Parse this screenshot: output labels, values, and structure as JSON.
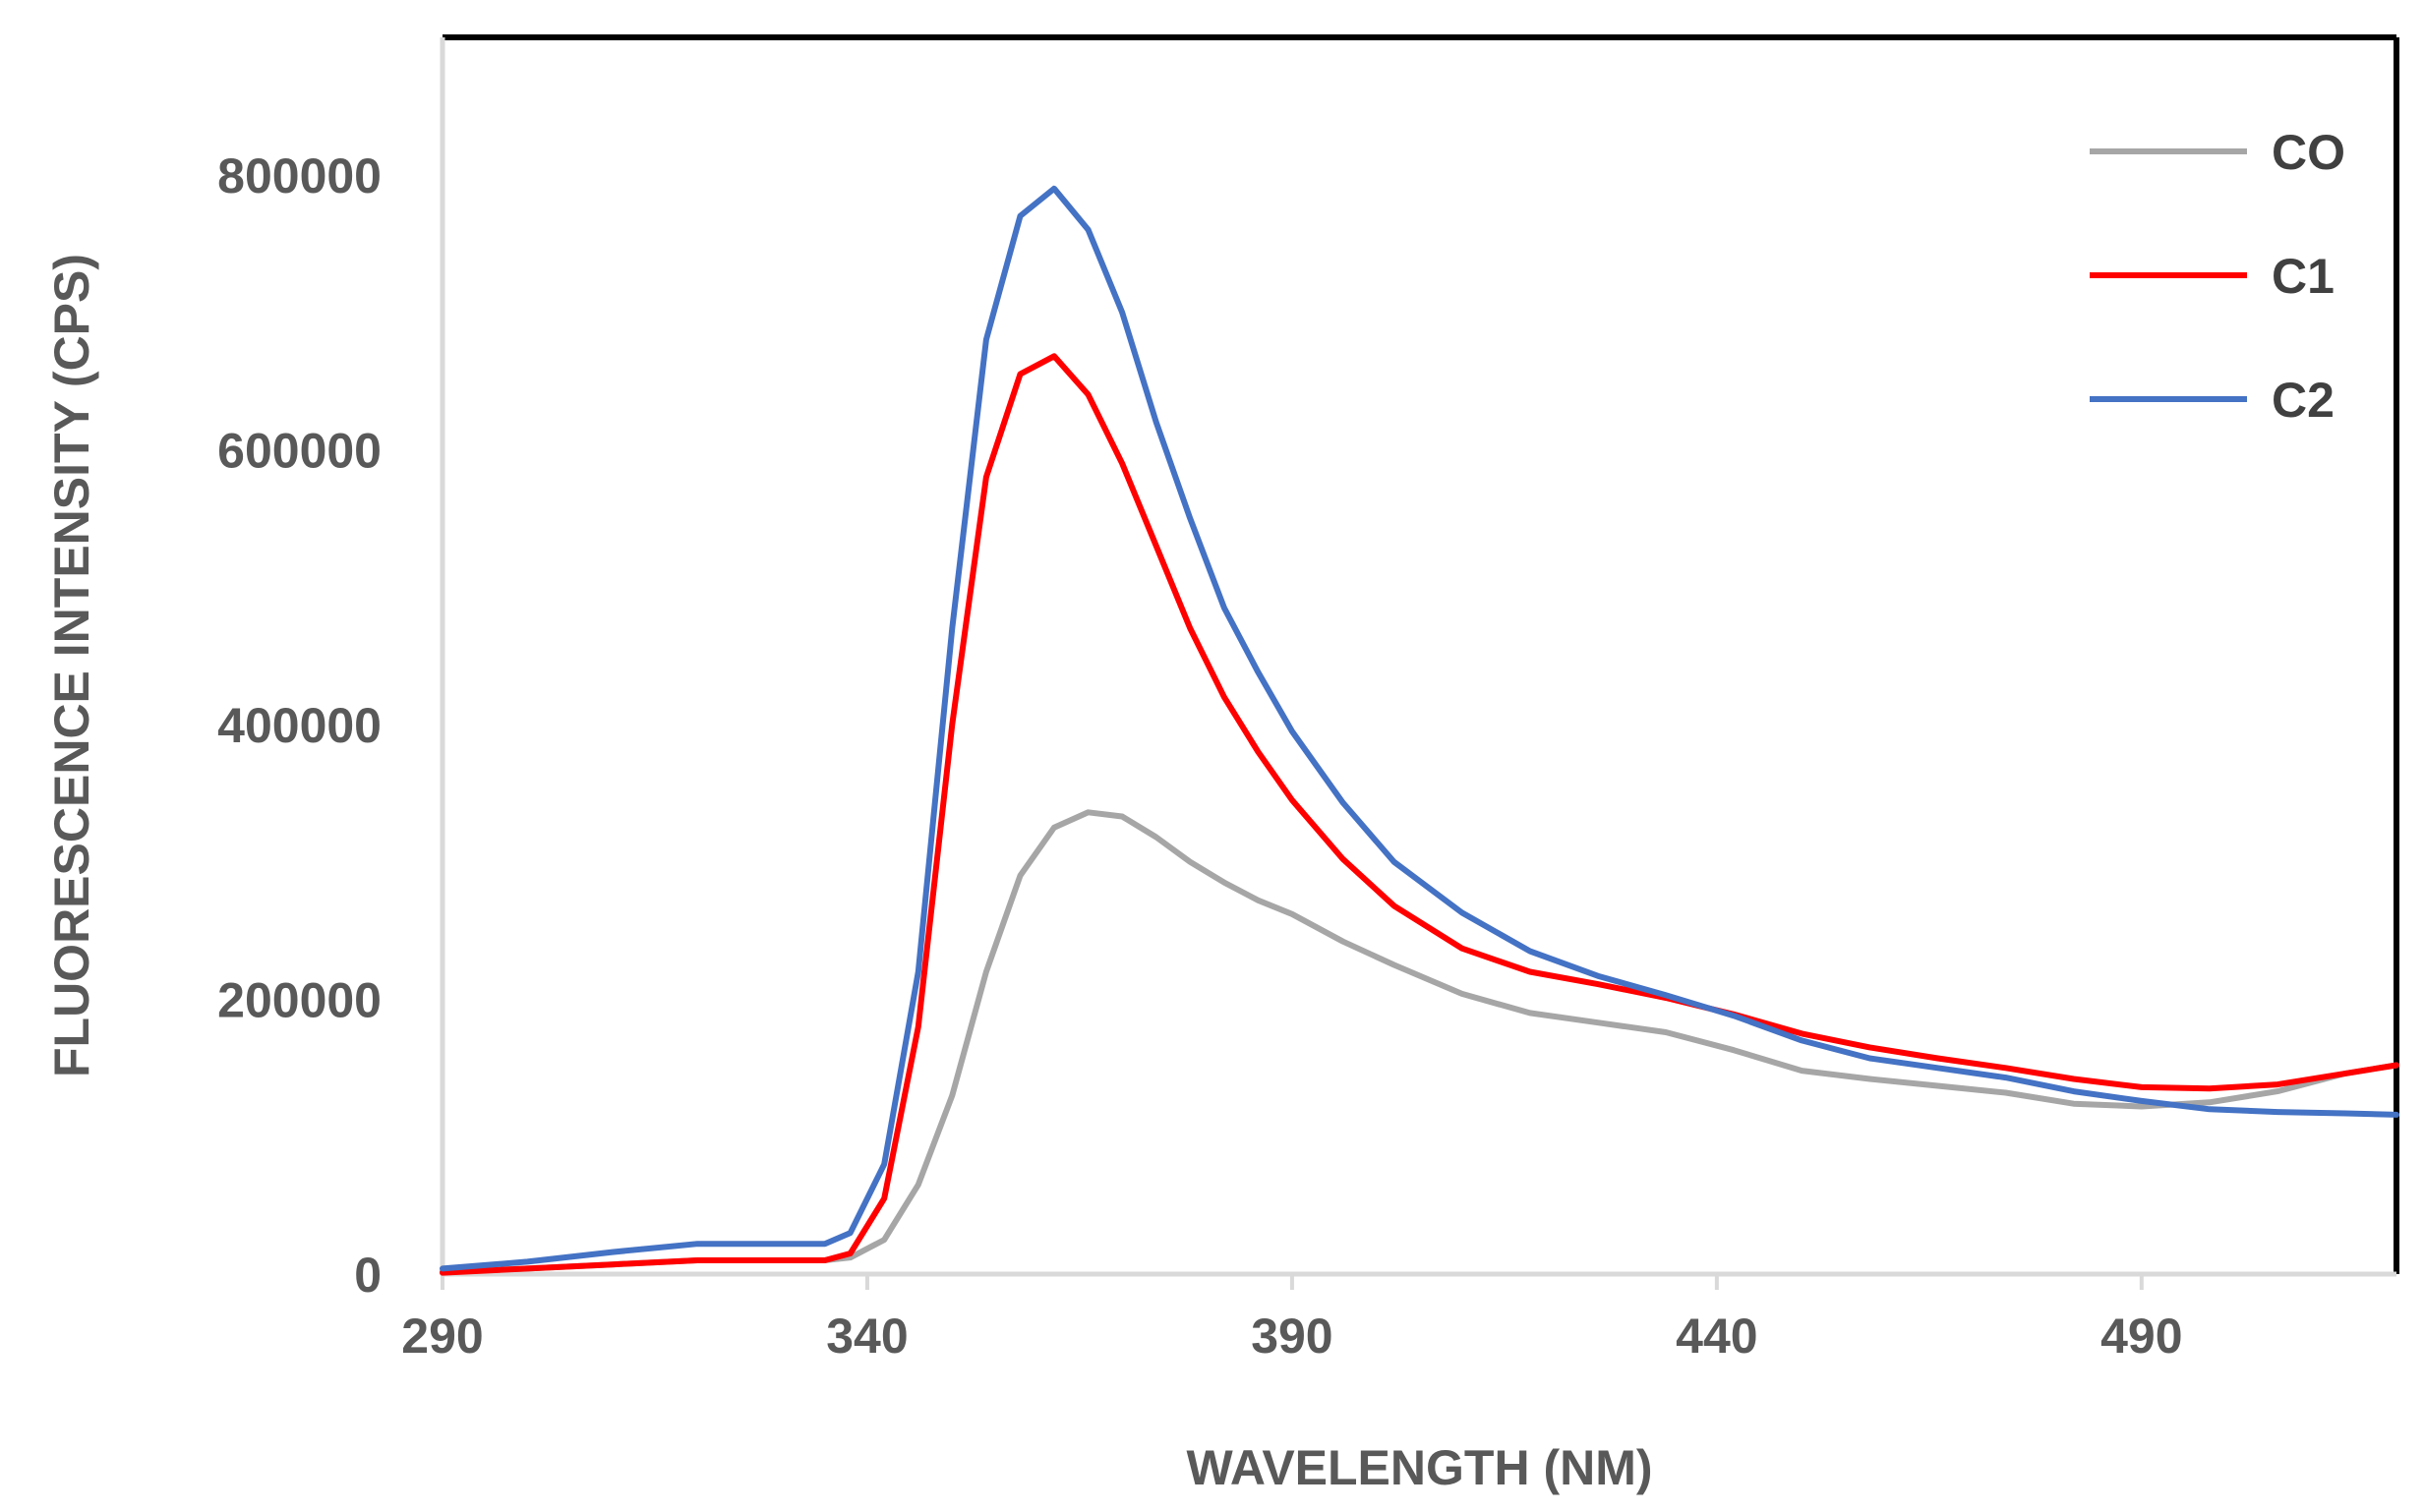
{
  "chart_data": {
    "type": "line",
    "title": "",
    "xlabel": "WAVELENGTH (NM)",
    "ylabel": "FLUORESCENCE INTENSITY (CPS)",
    "xlim": [
      290,
      520
    ],
    "ylim": [
      0,
      900000
    ],
    "xticks": [
      290,
      340,
      390,
      440,
      490
    ],
    "xtick_labels": [
      "290",
      "340",
      "390",
      "440",
      "490"
    ],
    "yticks": [
      0,
      200000,
      400000,
      600000,
      800000
    ],
    "ytick_labels": [
      "0",
      "200000",
      "400000",
      "600000",
      "800000"
    ],
    "grid": false,
    "legend_position": "top-right",
    "series": [
      {
        "name": "CO",
        "color": "#A6A6A6",
        "x": [
          290,
          300,
          310,
          320,
          330,
          335,
          338,
          342,
          346,
          350,
          354,
          358,
          362,
          366,
          370,
          374,
          378,
          382,
          386,
          390,
          396,
          402,
          410,
          418,
          426,
          434,
          442,
          450,
          458,
          466,
          474,
          482,
          490,
          498,
          506,
          514,
          520
        ],
        "y": [
          2000,
          4000,
          7000,
          10000,
          10000,
          10000,
          12000,
          25000,
          65000,
          130000,
          220000,
          290000,
          325000,
          336000,
          333000,
          318000,
          300000,
          285000,
          272000,
          262000,
          242000,
          225000,
          204000,
          190000,
          183000,
          176000,
          163000,
          148000,
          142000,
          137000,
          132000,
          124000,
          122000,
          125000,
          133000,
          146000,
          152000
        ]
      },
      {
        "name": "C1",
        "color": "#FF0000",
        "x": [
          290,
          300,
          310,
          320,
          330,
          335,
          338,
          342,
          346,
          350,
          354,
          358,
          362,
          366,
          370,
          374,
          378,
          382,
          386,
          390,
          396,
          402,
          410,
          418,
          426,
          434,
          442,
          450,
          458,
          466,
          474,
          482,
          490,
          498,
          506,
          514,
          520
        ],
        "y": [
          1000,
          4000,
          7000,
          10000,
          10000,
          10000,
          15000,
          55000,
          180000,
          400000,
          580000,
          655000,
          668000,
          640000,
          590000,
          530000,
          470000,
          420000,
          380000,
          345000,
          302000,
          268000,
          237000,
          220000,
          211000,
          201000,
          189000,
          175000,
          165000,
          157000,
          150000,
          142000,
          136000,
          135000,
          138000,
          146000,
          152000
        ]
      },
      {
        "name": "C2",
        "color": "#4472C4",
        "x": [
          290,
          300,
          310,
          320,
          330,
          335,
          338,
          342,
          346,
          350,
          354,
          358,
          362,
          366,
          370,
          374,
          378,
          382,
          386,
          390,
          396,
          402,
          410,
          418,
          426,
          434,
          442,
          450,
          458,
          466,
          474,
          482,
          490,
          498,
          506,
          514,
          520
        ],
        "y": [
          4000,
          9000,
          16000,
          22000,
          22000,
          22000,
          30000,
          80000,
          220000,
          470000,
          680000,
          770000,
          790000,
          760000,
          700000,
          620000,
          550000,
          485000,
          438000,
          395000,
          343000,
          300000,
          263000,
          235000,
          217000,
          203000,
          188000,
          170000,
          157000,
          150000,
          143000,
          133000,
          126000,
          120000,
          118000,
          117000,
          116000
        ]
      }
    ]
  }
}
